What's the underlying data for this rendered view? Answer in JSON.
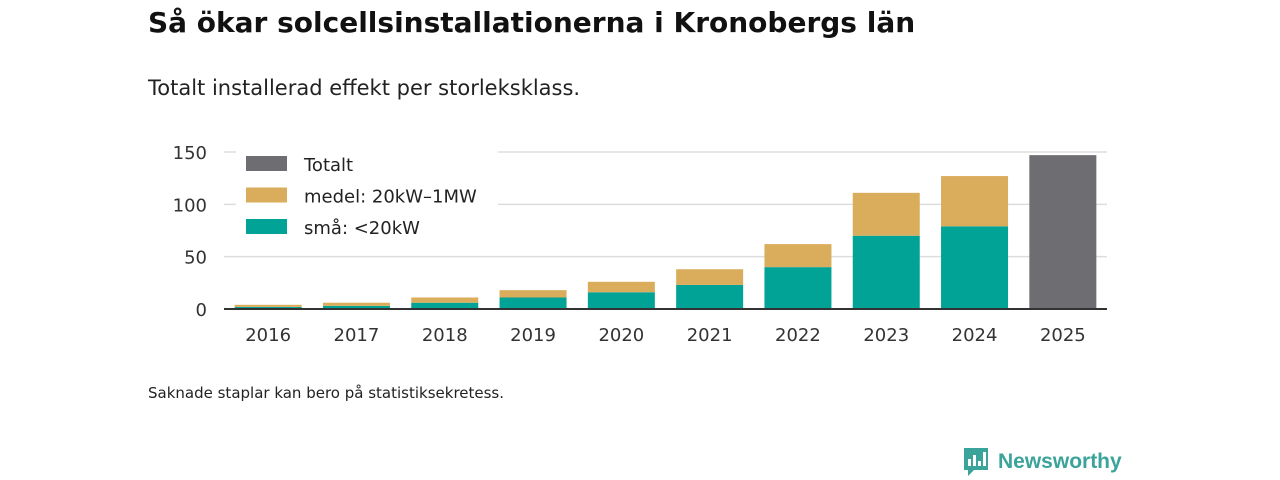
{
  "title": "Så ökar solcellsinstallationerna i Kronobergs län",
  "subtitle": "Totalt installerad effekt per storleksklass.",
  "footnote": "Saknade staplar kan bero på statistiksekretess.",
  "brand": {
    "name": "Newsworthy",
    "icon": "newsworthy-logo-icon"
  },
  "colors": {
    "total": "#6e6d72",
    "medium": "#d9ad5b",
    "small": "#00a396",
    "grid": "#dddddd",
    "axis": "#333333"
  },
  "chart_data": {
    "type": "bar",
    "stacked": true,
    "categories": [
      "2016",
      "2017",
      "2018",
      "2019",
      "2020",
      "2021",
      "2022",
      "2023",
      "2024",
      "2025"
    ],
    "series": [
      {
        "name": "små: <20kW",
        "key": "small",
        "values": [
          2,
          3,
          6,
          11,
          16,
          23,
          40,
          70,
          79,
          null
        ]
      },
      {
        "name": "medel: 20kW–1MW",
        "key": "medium",
        "values": [
          2,
          3,
          5,
          7,
          10,
          15,
          22,
          41,
          48,
          null
        ]
      },
      {
        "name": "Totalt",
        "key": "total",
        "values": [
          null,
          null,
          null,
          null,
          null,
          null,
          null,
          null,
          null,
          147
        ]
      }
    ],
    "legend": [
      "Totalt",
      "medel: 20kW–1MW",
      "små: <20kW"
    ],
    "y_ticks": [
      "0",
      "50",
      "100",
      "150"
    ],
    "ylim": [
      0,
      150
    ],
    "xlabel": "",
    "ylabel": "",
    "grid": true,
    "legend_position": "top-left"
  }
}
